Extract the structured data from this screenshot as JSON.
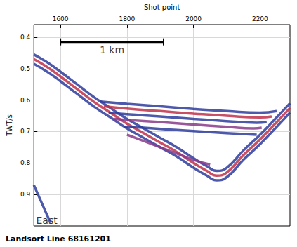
{
  "chart_data": {
    "type": "line",
    "title": "Landsort Line 68161201",
    "x_label": "Shot point",
    "y_label": "TWT/s",
    "xlim": [
      1520,
      2290
    ],
    "xticks": [
      1600,
      1800,
      2000,
      2200
    ],
    "ylim": [
      1.0,
      0.36
    ],
    "yticks": [
      0.4,
      0.5,
      0.6,
      0.7,
      0.8,
      0.9
    ],
    "grid": true,
    "series": [
      {
        "color": "#2e3c9c",
        "x": [
          1520,
          1560,
          1600,
          1650,
          1700,
          1750,
          1800,
          1850,
          1900,
          1950,
          2000,
          2040,
          2070,
          2100,
          2150,
          2200,
          2250,
          2290
        ],
        "values": [
          0.455,
          0.48,
          0.51,
          0.55,
          0.59,
          0.625,
          0.66,
          0.69,
          0.72,
          0.75,
          0.785,
          0.81,
          0.825,
          0.815,
          0.76,
          0.71,
          0.655,
          0.61
        ]
      },
      {
        "color": "#c0304a",
        "x": [
          1520,
          1560,
          1600,
          1650,
          1700,
          1750,
          1800,
          1850,
          1900,
          1950,
          2000,
          2040,
          2070,
          2100,
          2150,
          2200,
          2250,
          2290
        ],
        "values": [
          0.47,
          0.495,
          0.525,
          0.565,
          0.605,
          0.64,
          0.675,
          0.705,
          0.735,
          0.765,
          0.8,
          0.825,
          0.84,
          0.83,
          0.775,
          0.725,
          0.67,
          0.625
        ]
      },
      {
        "color": "#2e3c9c",
        "x": [
          1520,
          1560,
          1600,
          1650,
          1700,
          1750,
          1800,
          1850,
          1900,
          1950,
          2000,
          2040,
          2070,
          2100,
          2150,
          2200,
          2250,
          2290
        ],
        "values": [
          0.485,
          0.51,
          0.54,
          0.58,
          0.62,
          0.655,
          0.69,
          0.72,
          0.75,
          0.78,
          0.815,
          0.84,
          0.855,
          0.845,
          0.79,
          0.74,
          0.685,
          0.64
        ]
      },
      {
        "color": "#2e3c9c",
        "x": [
          1720,
          1800,
          1900,
          2000,
          2100,
          2200,
          2250
        ],
        "values": [
          0.605,
          0.612,
          0.62,
          0.628,
          0.635,
          0.64,
          0.635
        ]
      },
      {
        "color": "#c0304a",
        "x": [
          1730,
          1800,
          1900,
          2000,
          2100,
          2200,
          2235
        ],
        "values": [
          0.62,
          0.627,
          0.635,
          0.643,
          0.65,
          0.655,
          0.652
        ]
      },
      {
        "color": "#2e3c9c",
        "x": [
          1745,
          1800,
          1900,
          2000,
          2100,
          2190,
          2220
        ],
        "values": [
          0.64,
          0.645,
          0.652,
          0.66,
          0.667,
          0.672,
          0.67
        ]
      },
      {
        "color": "#8a3a8a",
        "x": [
          1760,
          1800,
          1900,
          2000,
          2100,
          2180,
          2205
        ],
        "values": [
          0.66,
          0.663,
          0.67,
          0.678,
          0.685,
          0.69,
          0.688
        ]
      },
      {
        "color": "#2e3c9c",
        "x": [
          1790,
          1850,
          1950,
          2050,
          2150,
          2190
        ],
        "values": [
          0.685,
          0.688,
          0.695,
          0.702,
          0.708,
          0.71
        ]
      },
      {
        "color": "#8a3a8a",
        "x": [
          1800,
          1850,
          1900,
          1950,
          2000,
          2050
        ],
        "values": [
          0.71,
          0.73,
          0.75,
          0.77,
          0.79,
          0.805
        ]
      },
      {
        "color": "#2e3c9c",
        "x": [
          1520,
          1545,
          1570
        ],
        "values": [
          0.87,
          0.93,
          0.99
        ]
      }
    ],
    "annotations": [
      {
        "text": "1 km",
        "x": [
          1600,
          1910
        ],
        "y": 0.415
      },
      {
        "text": "East",
        "x": 1527,
        "y": 0.982
      }
    ]
  }
}
